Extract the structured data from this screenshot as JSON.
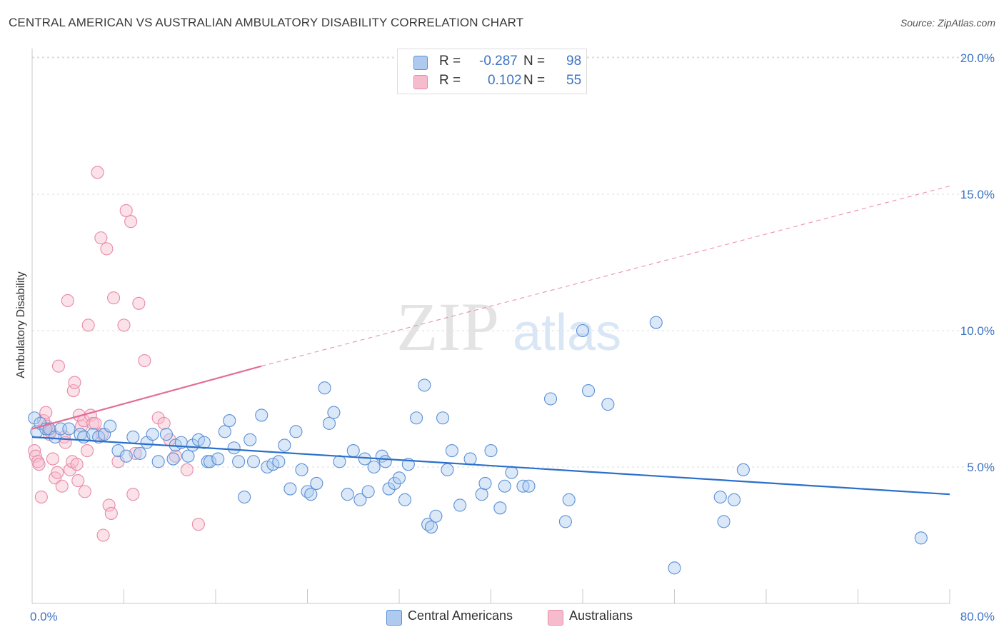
{
  "title": "CENTRAL AMERICAN VS AUSTRALIAN AMBULATORY DISABILITY CORRELATION CHART",
  "source": "Source: ZipAtlas.com",
  "watermark": {
    "zip": "ZIP",
    "atlas": "atlas"
  },
  "legend": {
    "rows": [
      {
        "r_label": "R =",
        "r_value": "-0.287",
        "n_label": "N =",
        "n_value": "98",
        "color": "#aecbef"
      },
      {
        "r_label": "R =",
        "r_value": "0.102",
        "n_label": "N =",
        "n_value": "55",
        "color": "#f6bccd"
      }
    ]
  },
  "bottom_legend": [
    {
      "label": "Central Americans",
      "color": "#aecbef"
    },
    {
      "label": "Australians",
      "color": "#f6bccd"
    }
  ],
  "chart_data": {
    "type": "scatter",
    "ylabel": "Ambulatory Disability",
    "xlim": [
      0,
      80
    ],
    "ylim": [
      0,
      20
    ],
    "x_tick_labels": [
      "0.0%",
      "80.0%"
    ],
    "y_ticks": [
      5,
      10,
      15,
      20
    ],
    "y_tick_labels": [
      "5.0%",
      "10.0%",
      "15.0%",
      "20.0%"
    ],
    "grid": true,
    "legend_position": "top-center",
    "colors": {
      "blue_fill": "#aecbef",
      "blue_stroke": "#5b8fd6",
      "blue_line": "#2a6fcb",
      "pink_fill": "#f6bccd",
      "pink_stroke": "#e889a8",
      "pink_line": "#e26d95"
    },
    "series": [
      {
        "name": "Central Americans",
        "trend": {
          "x": [
            0,
            80
          ],
          "y": [
            6.1,
            4.0
          ],
          "style": "solid"
        },
        "points": [
          [
            0.2,
            6.8
          ],
          [
            0.4,
            6.3
          ],
          [
            0.7,
            6.6
          ],
          [
            1.2,
            6.4
          ],
          [
            1.5,
            6.4
          ],
          [
            2.0,
            6.1
          ],
          [
            2.5,
            6.4
          ],
          [
            3.2,
            6.4
          ],
          [
            4.2,
            6.2
          ],
          [
            4.5,
            6.1
          ],
          [
            5.3,
            6.2
          ],
          [
            5.8,
            6.1
          ],
          [
            6.3,
            6.2
          ],
          [
            6.8,
            6.5
          ],
          [
            7.5,
            5.6
          ],
          [
            8.2,
            5.4
          ],
          [
            8.8,
            6.1
          ],
          [
            9.4,
            5.5
          ],
          [
            10.0,
            5.9
          ],
          [
            10.5,
            6.2
          ],
          [
            11.0,
            5.2
          ],
          [
            11.7,
            6.2
          ],
          [
            12.3,
            5.3
          ],
          [
            12.5,
            5.8
          ],
          [
            13.0,
            5.9
          ],
          [
            13.6,
            5.4
          ],
          [
            14.0,
            5.8
          ],
          [
            14.5,
            6.0
          ],
          [
            15.0,
            5.9
          ],
          [
            15.3,
            5.2
          ],
          [
            15.5,
            5.2
          ],
          [
            16.2,
            5.3
          ],
          [
            16.8,
            6.3
          ],
          [
            17.2,
            6.7
          ],
          [
            17.6,
            5.7
          ],
          [
            18.0,
            5.2
          ],
          [
            18.5,
            3.9
          ],
          [
            19.0,
            6.0
          ],
          [
            19.3,
            5.2
          ],
          [
            20.0,
            6.9
          ],
          [
            20.5,
            5.0
          ],
          [
            21.0,
            5.1
          ],
          [
            21.5,
            5.2
          ],
          [
            22.0,
            5.8
          ],
          [
            22.5,
            4.2
          ],
          [
            23.0,
            6.3
          ],
          [
            23.5,
            4.9
          ],
          [
            24.0,
            4.1
          ],
          [
            24.3,
            4.0
          ],
          [
            24.8,
            4.4
          ],
          [
            25.5,
            7.9
          ],
          [
            25.9,
            6.6
          ],
          [
            26.3,
            7.0
          ],
          [
            26.8,
            5.2
          ],
          [
            27.5,
            4.0
          ],
          [
            28.0,
            5.6
          ],
          [
            28.6,
            3.8
          ],
          [
            29.0,
            5.3
          ],
          [
            29.3,
            4.1
          ],
          [
            29.8,
            5.0
          ],
          [
            30.5,
            5.4
          ],
          [
            30.8,
            5.2
          ],
          [
            31.1,
            4.2
          ],
          [
            31.6,
            4.4
          ],
          [
            32.0,
            4.6
          ],
          [
            32.5,
            3.8
          ],
          [
            32.8,
            5.1
          ],
          [
            33.5,
            6.8
          ],
          [
            34.2,
            8.0
          ],
          [
            34.5,
            2.9
          ],
          [
            34.8,
            2.8
          ],
          [
            35.2,
            3.2
          ],
          [
            35.8,
            6.8
          ],
          [
            36.2,
            4.9
          ],
          [
            36.6,
            5.6
          ],
          [
            37.3,
            3.6
          ],
          [
            38.2,
            5.3
          ],
          [
            39.2,
            4.0
          ],
          [
            39.5,
            4.4
          ],
          [
            40.0,
            5.6
          ],
          [
            40.8,
            3.5
          ],
          [
            41.2,
            4.3
          ],
          [
            41.8,
            4.8
          ],
          [
            42.8,
            4.3
          ],
          [
            43.3,
            4.3
          ],
          [
            45.2,
            7.5
          ],
          [
            46.5,
            3.0
          ],
          [
            46.8,
            3.8
          ],
          [
            48.0,
            10.0
          ],
          [
            48.5,
            7.8
          ],
          [
            50.2,
            7.3
          ],
          [
            54.4,
            10.3
          ],
          [
            56.0,
            1.3
          ],
          [
            60.0,
            3.9
          ],
          [
            60.3,
            3.0
          ],
          [
            61.2,
            3.8
          ],
          [
            62.0,
            4.9
          ],
          [
            77.5,
            2.4
          ]
        ]
      },
      {
        "name": "Australians",
        "trend": {
          "x": [
            0,
            20
          ],
          "y": [
            6.4,
            8.7
          ],
          "style": "solid",
          "extended": {
            "x": [
              20,
              80
            ],
            "y": [
              8.7,
              15.3
            ],
            "style": "dashed"
          }
        },
        "points": [
          [
            0.2,
            5.6
          ],
          [
            0.3,
            5.4
          ],
          [
            0.5,
            5.2
          ],
          [
            0.6,
            5.1
          ],
          [
            0.8,
            3.9
          ],
          [
            1.0,
            6.7
          ],
          [
            1.2,
            7.0
          ],
          [
            1.3,
            6.5
          ],
          [
            1.5,
            6.2
          ],
          [
            1.6,
            6.3
          ],
          [
            1.8,
            5.3
          ],
          [
            2.0,
            4.6
          ],
          [
            2.2,
            4.8
          ],
          [
            2.3,
            8.7
          ],
          [
            2.6,
            4.3
          ],
          [
            2.8,
            6.1
          ],
          [
            2.9,
            5.9
          ],
          [
            3.1,
            11.1
          ],
          [
            3.3,
            4.9
          ],
          [
            3.5,
            5.2
          ],
          [
            3.6,
            7.8
          ],
          [
            3.7,
            8.1
          ],
          [
            3.9,
            5.1
          ],
          [
            4.0,
            4.5
          ],
          [
            4.1,
            6.9
          ],
          [
            4.3,
            6.5
          ],
          [
            4.5,
            6.7
          ],
          [
            4.6,
            4.1
          ],
          [
            4.8,
            5.6
          ],
          [
            4.9,
            10.2
          ],
          [
            5.1,
            6.9
          ],
          [
            5.3,
            6.6
          ],
          [
            5.5,
            6.6
          ],
          [
            5.7,
            15.8
          ],
          [
            6.0,
            13.4
          ],
          [
            6.1,
            6.2
          ],
          [
            6.2,
            2.5
          ],
          [
            6.5,
            13.0
          ],
          [
            6.7,
            3.6
          ],
          [
            6.9,
            3.3
          ],
          [
            7.1,
            11.2
          ],
          [
            7.5,
            5.2
          ],
          [
            8.0,
            10.2
          ],
          [
            8.2,
            14.4
          ],
          [
            8.6,
            14.0
          ],
          [
            8.8,
            4.0
          ],
          [
            9.0,
            5.5
          ],
          [
            9.3,
            11.0
          ],
          [
            9.8,
            8.9
          ],
          [
            11.0,
            6.8
          ],
          [
            11.5,
            6.6
          ],
          [
            12.0,
            6.0
          ],
          [
            12.5,
            5.4
          ],
          [
            13.5,
            4.9
          ],
          [
            14.5,
            2.9
          ]
        ]
      }
    ]
  }
}
